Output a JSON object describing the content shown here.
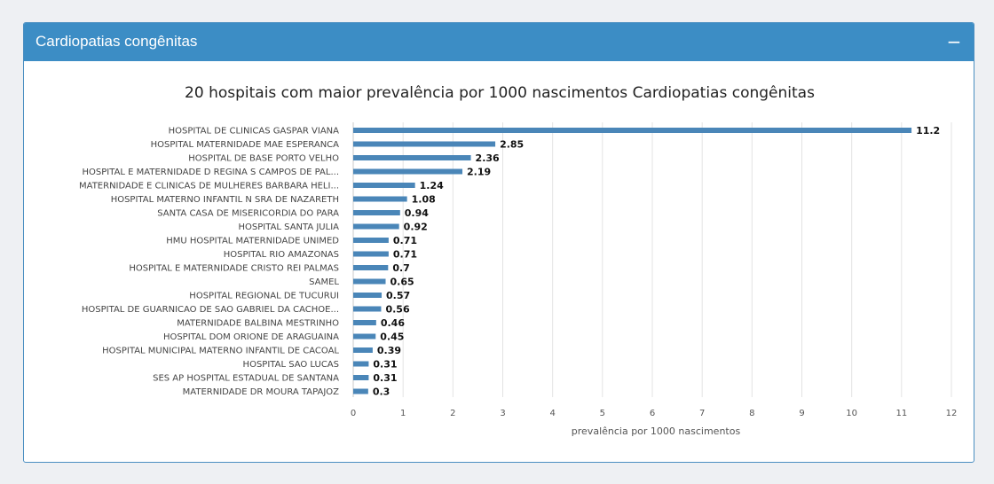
{
  "panel": {
    "title": "Cardiopatias congênitas",
    "collapse_symbol": "−",
    "header_color": "#3c8dc5"
  },
  "chart_data": {
    "type": "bar",
    "orientation": "horizontal",
    "title": "20 hospitais com maior prevalência por 1000 nascimentos Cardiopatias congênitas",
    "xlabel": "prevalência por 1000 nascimentos",
    "ylabel": "",
    "xlim": [
      0,
      12
    ],
    "xticks": [
      0,
      1,
      2,
      3,
      4,
      5,
      6,
      7,
      8,
      9,
      10,
      11,
      12
    ],
    "grid": true,
    "bar_color": "#4a86b8",
    "categories": [
      "HOSPITAL DE CLINICAS GASPAR VIANA",
      "HOSPITAL MATERNIDADE MAE ESPERANCA",
      "HOSPITAL DE BASE PORTO VELHO",
      "HOSPITAL E MATERNIDADE D REGINA S CAMPOS DE PAL...",
      "MATERNIDADE E CLINICAS DE MULHERES BARBARA HELI...",
      "HOSPITAL MATERNO INFANTIL N SRA DE NAZARETH",
      "SANTA CASA DE MISERICORDIA DO PARA",
      "HOSPITAL SANTA JULIA",
      "HMU HOSPITAL MATERNIDADE UNIMED",
      "HOSPITAL RIO AMAZONAS",
      "HOSPITAL E MATERNIDADE CRISTO REI PALMAS",
      "SAMEL",
      "HOSPITAL REGIONAL DE TUCURUI",
      "HOSPITAL DE GUARNICAO DE SAO GABRIEL DA CACHOE...",
      "MATERNIDADE BALBINA MESTRINHO",
      "HOSPITAL DOM ORIONE DE ARAGUAINA",
      "HOSPITAL MUNICIPAL MATERNO INFANTIL DE CACOAL",
      "HOSPITAL SAO LUCAS",
      "SES AP HOSPITAL ESTADUAL DE SANTANA",
      "MATERNIDADE DR MOURA TAPAJOZ"
    ],
    "values": [
      11.2,
      2.85,
      2.36,
      2.19,
      1.24,
      1.08,
      0.94,
      0.92,
      0.71,
      0.71,
      0.7,
      0.65,
      0.57,
      0.56,
      0.46,
      0.45,
      0.39,
      0.31,
      0.31,
      0.3
    ],
    "value_labels": [
      "11.2",
      "2.85",
      "2.36",
      "2.19",
      "1.24",
      "1.08",
      "0.94",
      "0.92",
      "0.71",
      "0.71",
      "0.7",
      "0.65",
      "0.57",
      "0.56",
      "0.46",
      "0.45",
      "0.39",
      "0.31",
      "0.31",
      "0.3"
    ]
  }
}
